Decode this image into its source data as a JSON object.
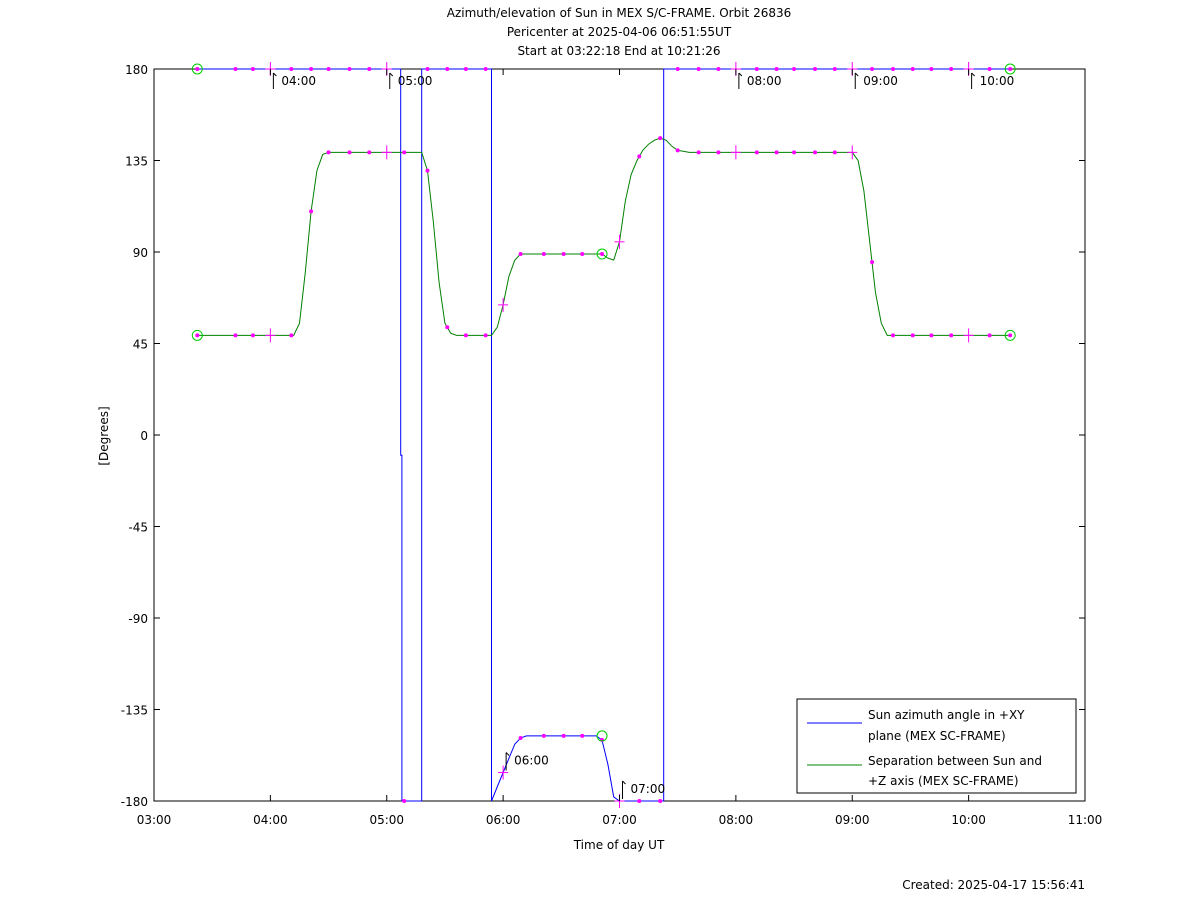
{
  "title_lines": [
    "Azimuth/elevation of Sun in MEX S/C-FRAME.  Orbit 26836",
    "Pericenter at 2025-04-06 06:51:55UT",
    "Start at 03:22:18 End at 10:21:26"
  ],
  "footer": "Created: 2025-04-17 15:56:41",
  "chart_data": {
    "type": "line",
    "xlabel": "Time of day UT",
    "ylabel": "[Degrees]",
    "xlim": [
      3.0,
      11.0
    ],
    "ylim": [
      -180,
      180
    ],
    "x_ticks": [
      3,
      4,
      5,
      6,
      7,
      8,
      9,
      10,
      11
    ],
    "x_tick_labels": [
      "03:00",
      "04:00",
      "05:00",
      "06:00",
      "07:00",
      "08:00",
      "09:00",
      "10:00",
      "11:00"
    ],
    "y_ticks": [
      180,
      135,
      90,
      45,
      0,
      -45,
      -90,
      -135,
      -180
    ],
    "y_tick_labels": [
      "180",
      "135",
      "90",
      "45",
      "0",
      "-45",
      "-90",
      "-135",
      "-180"
    ],
    "legend_position": "bottom-right",
    "colors": {
      "azimuth": "#0000ff",
      "separation": "#008000",
      "markers": "#ff00ff",
      "circles": "#00cc00"
    },
    "series": [
      {
        "name_lines": [
          "Sun azimuth angle in +XY",
          "plane (MEX SC-FRAME)"
        ],
        "x": [
          3.372,
          5.12,
          5.12,
          5.13,
          5.13,
          5.3,
          5.3,
          5.9,
          5.9,
          6.0,
          6.1,
          6.15,
          6.2,
          6.8,
          6.85,
          6.9,
          6.95,
          7.0,
          7.1,
          7.2,
          7.3,
          7.38,
          7.38,
          10.357
        ],
        "y": [
          180,
          180,
          -10,
          -10,
          -180,
          -180,
          180,
          180,
          -180,
          -166,
          -152,
          -149,
          -148,
          -148,
          -150,
          -162,
          -178,
          -180,
          -180,
          -180,
          -180,
          -180,
          180,
          180
        ]
      },
      {
        "name_lines": [
          "Separation between Sun and",
          "+Z axis (MEX SC-FRAME)"
        ],
        "x": [
          3.372,
          4.0,
          4.2,
          4.25,
          4.3,
          4.35,
          4.4,
          4.45,
          4.5,
          5.0,
          5.3,
          5.35,
          5.4,
          5.45,
          5.5,
          5.55,
          5.6,
          5.9,
          5.95,
          6.0,
          6.05,
          6.1,
          6.15,
          6.2,
          6.85,
          6.9,
          6.95,
          7.0,
          7.05,
          7.1,
          7.15,
          7.2,
          7.25,
          7.3,
          7.35,
          7.4,
          7.45,
          7.5,
          7.6,
          7.7,
          9.0,
          9.05,
          9.1,
          9.15,
          9.2,
          9.25,
          9.3,
          9.35,
          10.357
        ],
        "y": [
          49,
          49,
          49,
          55,
          80,
          110,
          130,
          138,
          139,
          139,
          139,
          130,
          105,
          75,
          55,
          50,
          49,
          49,
          53,
          64,
          78,
          86,
          89,
          89,
          89,
          87,
          86,
          95,
          115,
          128,
          135,
          140,
          143,
          145,
          146,
          145,
          142,
          140,
          139,
          139,
          139,
          135,
          120,
          95,
          70,
          55,
          49,
          49,
          49
        ]
      }
    ],
    "marker_times": [
      3.372,
      3.7,
      3.85,
      4.0,
      4.18,
      4.35,
      4.5,
      4.68,
      4.85,
      5.0,
      5.15,
      5.35,
      5.52,
      5.68,
      5.85,
      6.0,
      6.15,
      6.35,
      6.52,
      6.68,
      6.85,
      7.0,
      7.17,
      7.35,
      7.5,
      7.68,
      7.85,
      8.0,
      8.18,
      8.35,
      8.5,
      8.68,
      8.85,
      9.0,
      9.17,
      9.35,
      9.52,
      9.68,
      9.85,
      10.0,
      10.18,
      10.357
    ],
    "hour_annotations": [
      {
        "x": 4.0,
        "label": "04:00",
        "position": "top"
      },
      {
        "x": 5.0,
        "label": "05:00",
        "position": "top"
      },
      {
        "x": 6.0,
        "label": "06:00",
        "position": "bottom"
      },
      {
        "x": 7.0,
        "label": "07:00",
        "position": "bottom"
      },
      {
        "x": 8.0,
        "label": "08:00",
        "position": "top"
      },
      {
        "x": 9.0,
        "label": "09:00",
        "position": "top"
      },
      {
        "x": 10.0,
        "label": "10:00",
        "position": "top"
      }
    ]
  }
}
